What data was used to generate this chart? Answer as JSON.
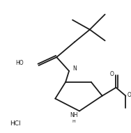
{
  "background": "#ffffff",
  "line_color": "#1a1a1a",
  "line_width": 1.3,
  "figsize": [
    1.88,
    1.91
  ],
  "dpi": 100,
  "xlim": [
    0,
    188
  ],
  "ylim": [
    0,
    191
  ],
  "hcl_text": "HCl",
  "ho_text": "HO",
  "n_text": "N",
  "nh_text": "NH",
  "h_text": "H",
  "o_upper_text": "O",
  "o_lower_text": "O"
}
